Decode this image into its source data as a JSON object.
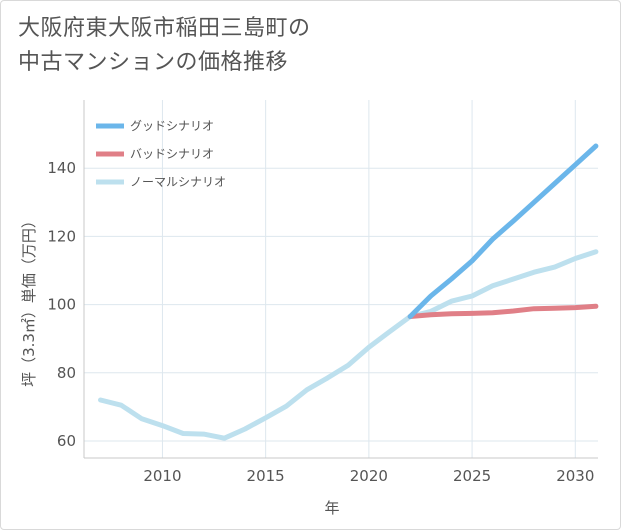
{
  "title_lines": [
    "大阪府東大阪市稲田三島町の",
    "中古マンションの価格推移"
  ],
  "chart_data": {
    "type": "line",
    "title": "大阪府東大阪市稲田三島町の中古マンションの価格推移",
    "xlabel": "年",
    "ylabel": "坪（3.3㎡）単価（万円）",
    "xlim": [
      2006.2,
      2031.1
    ],
    "ylim": [
      55,
      160
    ],
    "xticks": [
      2010,
      2015,
      2020,
      2025,
      2030
    ],
    "yticks": [
      60,
      80,
      100,
      120,
      140
    ],
    "grid": true,
    "legend_position": "top-left",
    "series": [
      {
        "name": "グッドシナリオ",
        "color": "#6bb6ea",
        "x": [
          2022,
          2023,
          2024,
          2025,
          2026,
          2027,
          2028,
          2029,
          2030,
          2031
        ],
        "y": [
          96.5,
          102.5,
          107.5,
          112.8,
          119.2,
          124.5,
          130,
          135.5,
          141,
          146.5
        ]
      },
      {
        "name": "バッドシナリオ",
        "color": "#e07f87",
        "x": [
          2022,
          2023,
          2024,
          2025,
          2026,
          2027,
          2028,
          2029,
          2030,
          2031
        ],
        "y": [
          96.5,
          97,
          97.3,
          97.4,
          97.6,
          98.1,
          98.8,
          98.9,
          99.1,
          99.5
        ]
      },
      {
        "name": "ノーマルシナリオ",
        "color": "#bde0ee",
        "x": [
          2007,
          2008,
          2009,
          2010,
          2011,
          2012,
          2013,
          2014,
          2015,
          2016,
          2017,
          2018,
          2019,
          2020,
          2021,
          2022,
          2023,
          2024,
          2025,
          2026,
          2027,
          2028,
          2029,
          2030,
          2031
        ],
        "y": [
          72,
          70.5,
          66.5,
          64.5,
          62.2,
          62,
          60.8,
          63.5,
          66.8,
          70.2,
          75,
          78.5,
          82.2,
          87.5,
          92,
          96.5,
          98,
          101,
          102.5,
          105.5,
          107.5,
          109.5,
          111,
          113.5,
          115.5
        ]
      }
    ]
  }
}
